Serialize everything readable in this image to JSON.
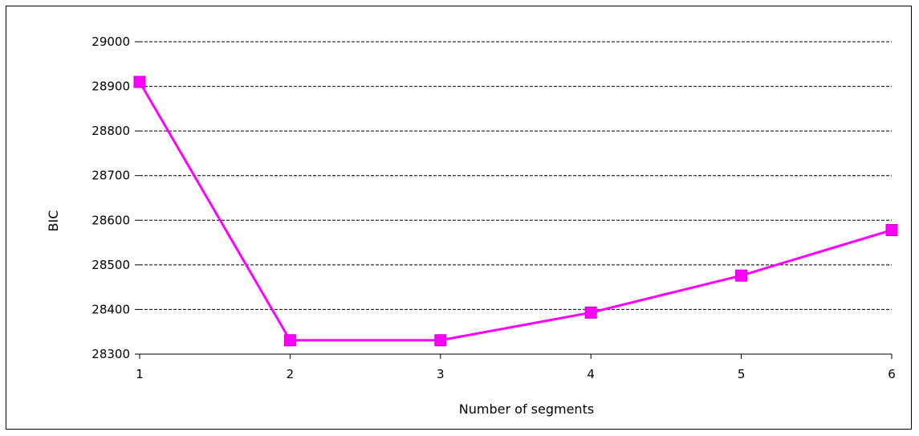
{
  "chart_data": {
    "type": "line",
    "title": "",
    "xlabel": "Number of segments",
    "ylabel": "BIC",
    "x": [
      1,
      2,
      3,
      4,
      5,
      6
    ],
    "x_tick_labels": [
      "1",
      "2",
      "3",
      "4",
      "5",
      "6"
    ],
    "y_tick_labels": [
      "28300",
      "28400",
      "28500",
      "28600",
      "28700",
      "28800",
      "28900",
      "29000"
    ],
    "ylim": [
      28300,
      29000
    ],
    "grid": "horizontal dashed",
    "legend": "none",
    "series": [
      {
        "values": [
          28910,
          28331,
          28331,
          28393,
          28476,
          28578
        ],
        "color": "#ff00ff",
        "marker": "square"
      }
    ]
  }
}
